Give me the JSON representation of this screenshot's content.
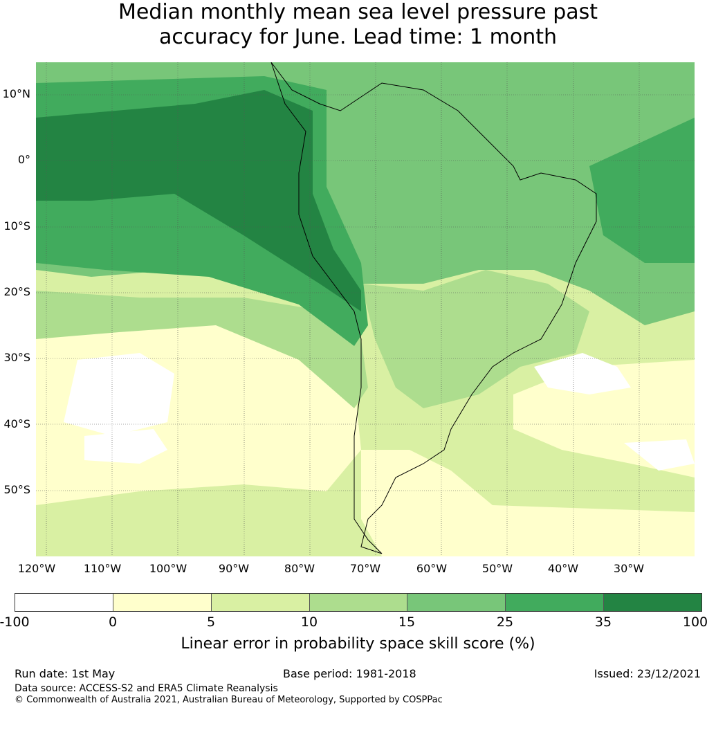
{
  "title_line1": "Median monthly mean sea level pressure past",
  "title_line2": "accuracy for June. Lead time: 1 month",
  "map": {
    "lat_ticks": [
      "10°N",
      "0°",
      "10°S",
      "20°S",
      "30°S",
      "40°S",
      "50°S"
    ],
    "lon_ticks": [
      "120°W",
      "110°W",
      "100°W",
      "90°W",
      "80°W",
      "70°W",
      "60°W",
      "50°W",
      "40°W",
      "30°W"
    ],
    "extent": {
      "lon": [
        -120,
        -20
      ],
      "lat": [
        15,
        -60
      ]
    },
    "colors": {
      "neg": "#ffffff",
      "c0_5": "#ffffcc",
      "c5_10": "#d9f0a3",
      "c10_15": "#addd8e",
      "c15_25": "#78c679",
      "c25_35": "#41ab5d",
      "c35_100": "#238443"
    }
  },
  "colorbar": {
    "ticks": [
      "-100",
      "0",
      "5",
      "10",
      "15",
      "25",
      "35",
      "100"
    ],
    "colors": [
      "#ffffff",
      "#ffffcc",
      "#d9f0a3",
      "#addd8e",
      "#78c679",
      "#41ab5d",
      "#238443"
    ],
    "label": "Linear error in probability space skill score (%)"
  },
  "footer": {
    "run_date": "Run date: 1st May",
    "base_period": "Base period: 1981-2018",
    "issued": "Issued: 23/12/2021",
    "data_source": "Data source: ACCESS-S2 and ERA5 Climate Reanalysis",
    "copyright": "© Commonwealth of Australia 2021, Australian Bureau of Meteorology, Supported by COSPPac"
  }
}
